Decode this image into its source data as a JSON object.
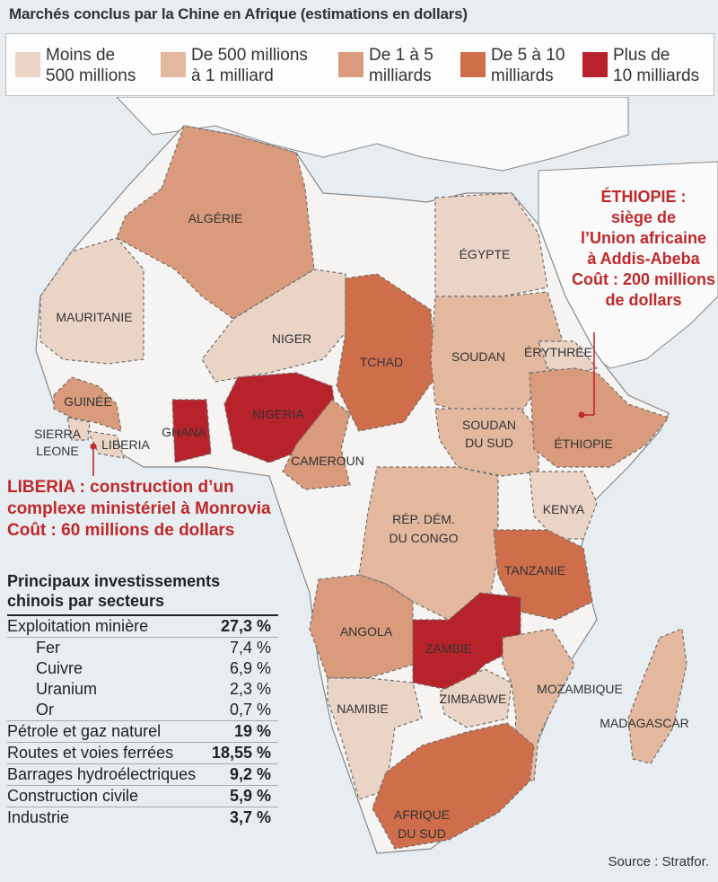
{
  "title": "Marchés conclus par la Chine en Afrique (estimations en dollars)",
  "legend": [
    {
      "label": "Moins de\n500 millions",
      "color": "#ead4c6"
    },
    {
      "label": "De 500 millions\nà 1 milliard",
      "color": "#e3b89e"
    },
    {
      "label": "De 1 à 5\nmilliards",
      "color": "#d99b7b"
    },
    {
      "label": "De 5 à 10\nmilliards",
      "color": "#cf6e4b"
    },
    {
      "label": "Plus de\n10 milliards",
      "color": "#b8232b"
    }
  ],
  "countries": [
    {
      "name": "ALGÉRIE",
      "category": 2
    },
    {
      "name": "ÉGYPTE",
      "category": 0
    },
    {
      "name": "MAURITANIE",
      "category": 0
    },
    {
      "name": "NIGER",
      "category": 0
    },
    {
      "name": "TCHAD",
      "category": 3
    },
    {
      "name": "SOUDAN",
      "category": 1
    },
    {
      "name": "ÉRYTHRÉE",
      "category": 0
    },
    {
      "name": "GUINÉE",
      "category": 2
    },
    {
      "name": "SIERRA LEONE",
      "category": 0
    },
    {
      "name": "LIBERIA",
      "category": 0
    },
    {
      "name": "GHANA",
      "category": 4
    },
    {
      "name": "NIGERIA",
      "category": 4
    },
    {
      "name": "CAMEROUN",
      "category": 2
    },
    {
      "name": "SOUDAN DU SUD",
      "category": 1
    },
    {
      "name": "ÉTHIOPIE",
      "category": 2
    },
    {
      "name": "KENYA",
      "category": 0
    },
    {
      "name": "RÉP. DÉM. DU CONGO",
      "category": 1
    },
    {
      "name": "TANZANIE",
      "category": 3
    },
    {
      "name": "ANGOLA",
      "category": 2
    },
    {
      "name": "ZAMBIE",
      "category": 4
    },
    {
      "name": "ZIMBABWE",
      "category": 0
    },
    {
      "name": "MOZAMBIQUE",
      "category": 1
    },
    {
      "name": "NAMIBIE",
      "category": 0
    },
    {
      "name": "MADAGASCAR",
      "category": 1
    },
    {
      "name": "AFRIQUE DU SUD",
      "category": 3
    }
  ],
  "callouts": {
    "ethiopie": "ÉTHIOPIE :\nsiège de\nl’Union africaine\nà Addis-Abeba\nCoût : 200 millions\nde dollars",
    "liberia": "LIBERIA : construction d’un\ncomplexe ministériel à Monrovia\nCoût : 60 millions de dollars"
  },
  "sectors": {
    "title": "Principaux investissements\nchinois par secteurs",
    "rows": [
      {
        "label": "Exploitation minière",
        "value": "27,3 %",
        "level": "main"
      },
      {
        "label": "Fer",
        "value": "7,4 %",
        "level": "sub"
      },
      {
        "label": "Cuivre",
        "value": "6,9 %",
        "level": "sub"
      },
      {
        "label": "Uranium",
        "value": "2,3 %",
        "level": "sub"
      },
      {
        "label": "Or",
        "value": "0,7 %",
        "level": "sub"
      },
      {
        "label": "Pétrole et gaz naturel",
        "value": "19 %",
        "level": "main"
      },
      {
        "label": "Routes et voies ferrées",
        "value": "18,55 %",
        "level": "main"
      },
      {
        "label": "Barrages hydroélectriques",
        "value": "9,2 %",
        "level": "main"
      },
      {
        "label": "Construction civile",
        "value": "5,9 %",
        "level": "main"
      },
      {
        "label": "Industrie",
        "value": "3,7 %",
        "level": "main"
      }
    ]
  },
  "source": "Source : Stratfor."
}
